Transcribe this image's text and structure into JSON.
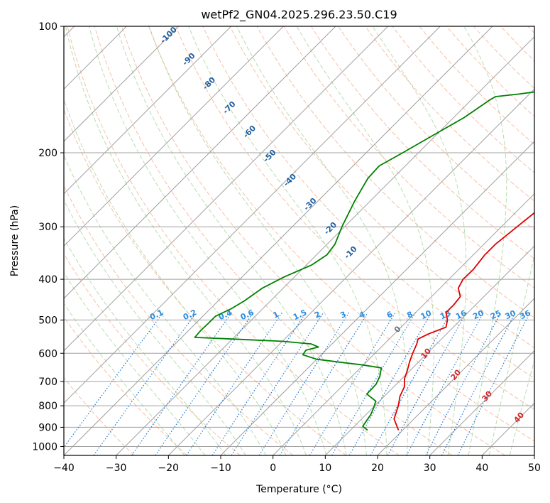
{
  "chart_data": {
    "type": "line",
    "title": "wetPf2_GN04.2025.296.23.50.C19",
    "xlabel": "Temperature (°C)",
    "ylabel": "Pressure (hPa)",
    "xlim": [
      -40,
      50
    ],
    "ylim": [
      1050,
      100
    ],
    "y_scale": "log",
    "grid": true,
    "x_ticks": [
      -40,
      -30,
      -20,
      -10,
      0,
      10,
      20,
      30,
      40,
      50
    ],
    "y_ticks": [
      100,
      200,
      300,
      400,
      500,
      600,
      700,
      800,
      900,
      1000
    ],
    "series": [
      {
        "color": "#e00000",
        "points": [
          [
            19.2,
            915
          ],
          [
            16.2,
            860
          ],
          [
            14.5,
            800
          ],
          [
            13,
            760
          ],
          [
            12,
            720
          ],
          [
            10.5,
            690
          ],
          [
            9.5,
            660
          ],
          [
            8.3,
            630
          ],
          [
            7.2,
            600
          ],
          [
            6.2,
            570
          ],
          [
            5.5,
            555
          ],
          [
            6.5,
            540
          ],
          [
            8.6,
            520
          ],
          [
            7.5,
            500
          ],
          [
            5.8,
            480
          ],
          [
            5.8,
            460
          ],
          [
            5.5,
            440
          ],
          [
            3.5,
            420
          ],
          [
            2.7,
            400
          ],
          [
            2.8,
            380
          ],
          [
            2.2,
            350
          ],
          [
            2.2,
            330
          ],
          [
            3,
            300
          ],
          [
            3.9,
            270
          ],
          [
            3.5,
            250
          ],
          [
            4.5,
            230
          ],
          [
            5.7,
            210
          ],
          [
            6.1,
            190
          ],
          [
            7.5,
            170
          ],
          [
            9.2,
            150
          ],
          [
            10.7,
            135
          ],
          [
            12.2,
            120
          ],
          [
            14.5,
            110
          ],
          [
            20.4,
            100
          ]
        ]
      },
      {
        "color": "#008000",
        "points": [
          [
            13.3,
            915
          ],
          [
            11.6,
            895
          ],
          [
            11.3,
            870
          ],
          [
            10.9,
            840
          ],
          [
            10.2,
            810
          ],
          [
            9.3,
            780
          ],
          [
            6.2,
            750
          ],
          [
            6.2,
            730
          ],
          [
            6.1,
            710
          ],
          [
            5.3,
            680
          ],
          [
            4,
            650
          ],
          [
            0,
            640
          ],
          [
            -5,
            630
          ],
          [
            -10,
            620
          ],
          [
            -13.5,
            605
          ],
          [
            -13.8,
            590
          ],
          [
            -12,
            580
          ],
          [
            -14,
            570
          ],
          [
            -20,
            562
          ],
          [
            -30,
            555
          ],
          [
            -37.5,
            550
          ],
          [
            -37.7,
            530
          ],
          [
            -37.6,
            510
          ],
          [
            -37.6,
            490
          ],
          [
            -36,
            470
          ],
          [
            -35,
            450
          ],
          [
            -34,
            420
          ],
          [
            -32,
            395
          ],
          [
            -29,
            370
          ],
          [
            -28,
            350
          ],
          [
            -28.5,
            330
          ],
          [
            -30.5,
            300
          ],
          [
            -33,
            260
          ],
          [
            -34.8,
            230
          ],
          [
            -35,
            215
          ],
          [
            -33,
            200
          ],
          [
            -31,
            185
          ],
          [
            -28,
            165
          ],
          [
            -26.5,
            150
          ],
          [
            -26,
            147
          ],
          [
            -22,
            145
          ],
          [
            -19,
            143
          ],
          [
            -16,
            140
          ],
          [
            -12,
            135
          ],
          [
            -7,
            125
          ],
          [
            -3,
            115
          ],
          [
            -2,
            110
          ],
          [
            -1,
            103
          ],
          [
            -0.7,
            100
          ]
        ]
      }
    ],
    "dry_adiabat_labels": [
      "-100",
      "-90",
      "-80",
      "-70",
      "-60",
      "-50",
      "-40",
      "-30",
      "-20",
      "-10"
    ],
    "mixing_ratio_labels": [
      "0.1",
      "0.2",
      "0.4",
      "0.6",
      "1",
      "1.5",
      "2",
      "3",
      "4",
      "6",
      "8",
      "10",
      "13",
      "16",
      "20",
      "25",
      "30",
      "36"
    ],
    "moist_adiabat_labels": [
      "0",
      "10",
      "20",
      "30",
      "40"
    ],
    "colors": {
      "dry_adiabat": "#f4a582",
      "moist_adiabat": "#a6d49b",
      "mixing_ratio": "#1f78d4",
      "isotherm": "#a0a0a0",
      "isobar": "#a0a0a0",
      "dry_label": "#1f5f9f",
      "mix_label": "#2b8cdf",
      "moist_label": "#d62728"
    }
  }
}
